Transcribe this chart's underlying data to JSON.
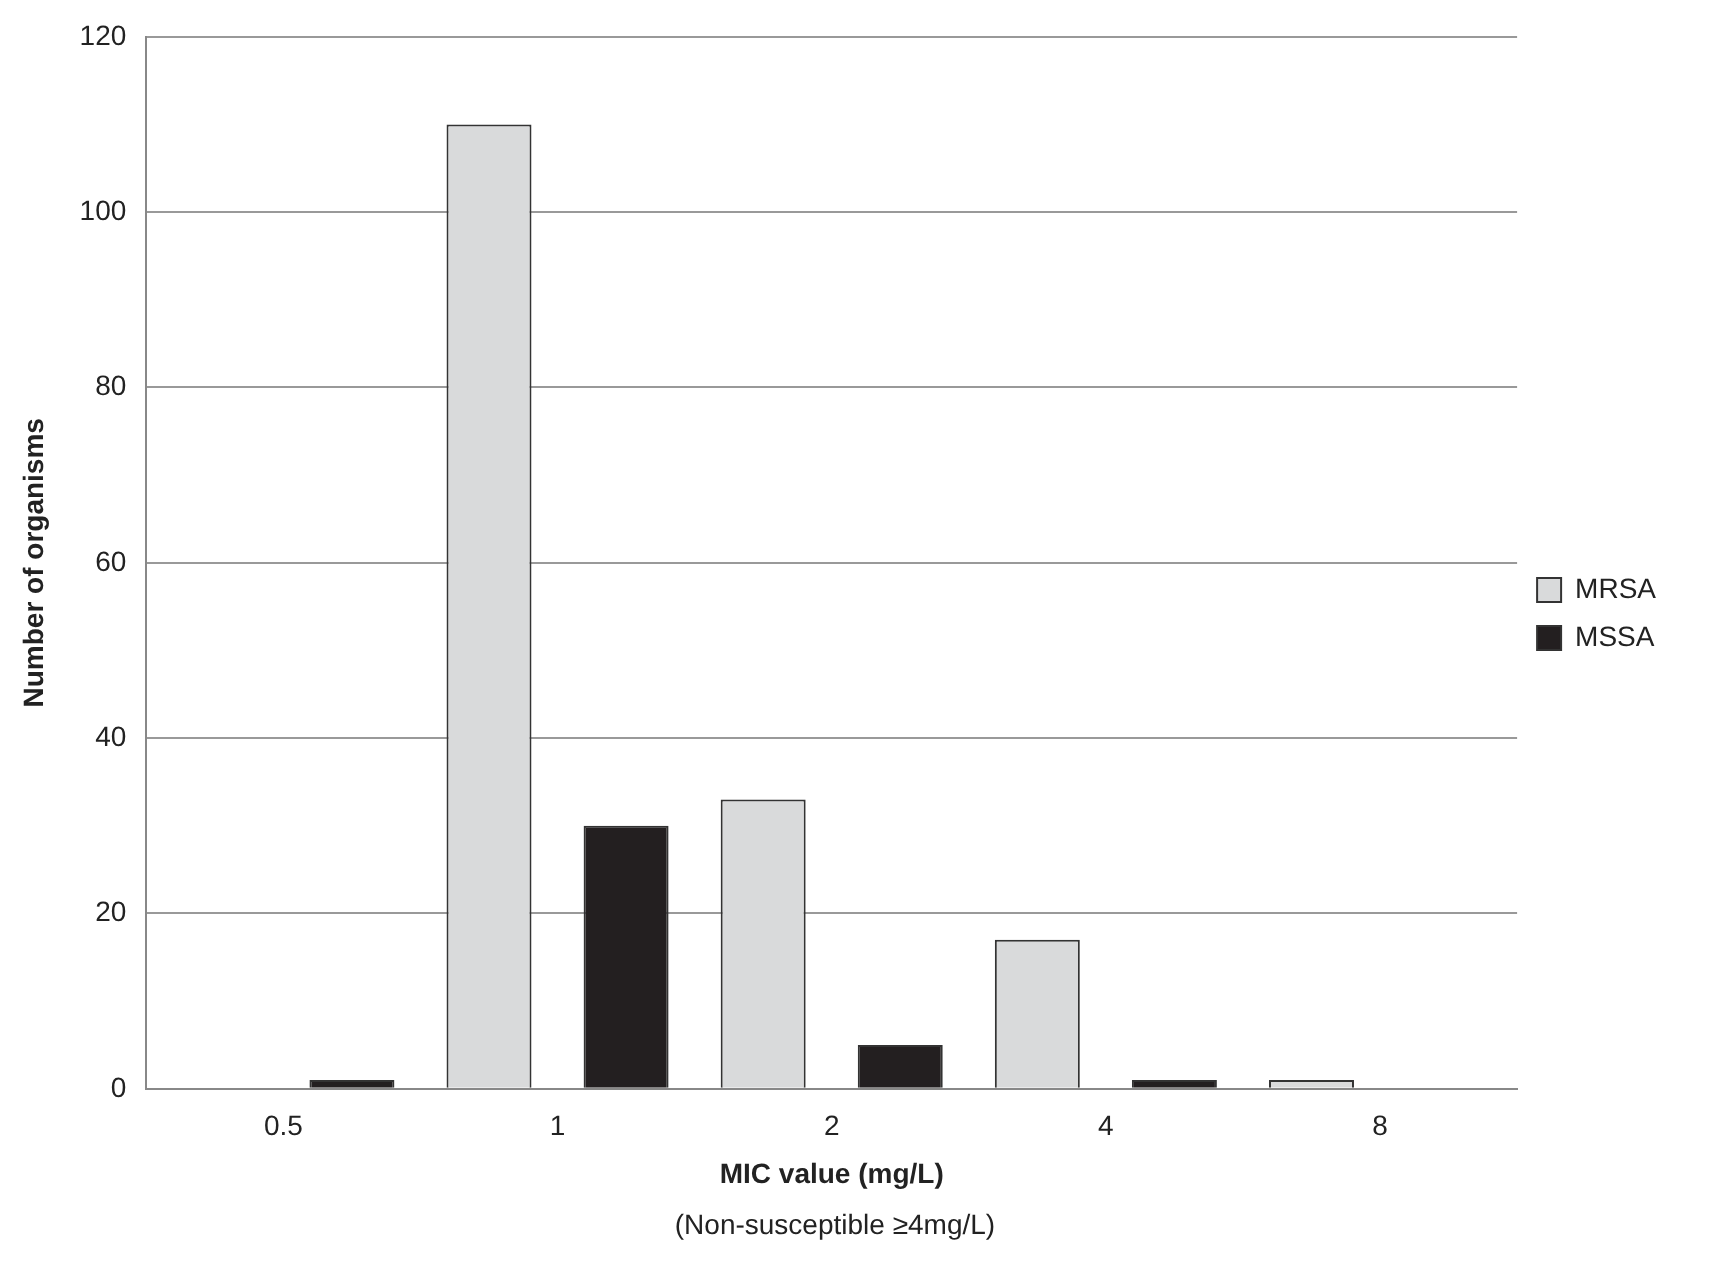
{
  "chart_data": {
    "type": "bar",
    "xlabel": "MIC value (mg/L)",
    "ylabel": "Number of organisms",
    "annotations": [
      "(Non-susceptible ≥4mg/L)"
    ],
    "categories": [
      "0.5",
      "1",
      "2",
      "4",
      "8"
    ],
    "series": [
      {
        "name": "MRSA",
        "color": "#d9dadb",
        "values": [
          0,
          110,
          33,
          17,
          1
        ]
      },
      {
        "name": "MSSA",
        "color": "#231f20",
        "values": [
          1,
          30,
          5,
          1,
          0
        ]
      }
    ],
    "ylim": [
      0,
      120
    ],
    "yticks": [
      0,
      20,
      40,
      60,
      80,
      100,
      120
    ],
    "grid": "y",
    "legend": "right"
  }
}
